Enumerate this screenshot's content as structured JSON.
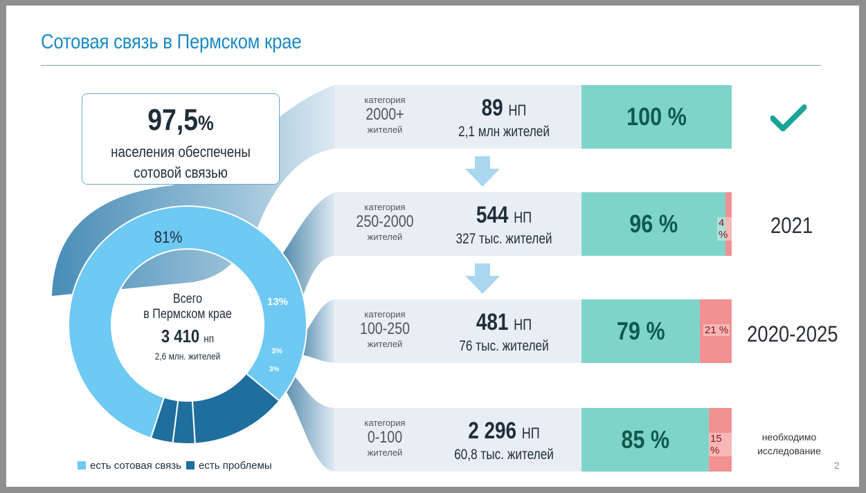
{
  "title": "Сотовая связь в Пермском крае",
  "callout": {
    "value": "97,5",
    "unit": "%",
    "line1": "населения обеспечены",
    "line2": "сотовой связью"
  },
  "donut": {
    "segments": [
      {
        "label": "81%",
        "value": 81,
        "color": "#6ec9f3"
      },
      {
        "label": "13%",
        "value": 13,
        "color": "#1f6e9e"
      },
      {
        "label": "3%",
        "value": 3,
        "color": "#1f6e9e"
      },
      {
        "label": "3%",
        "value": 3,
        "color": "#1f6e9e"
      }
    ],
    "center_line1": "Всего",
    "center_line2": "в Пермском крае",
    "center_count": "3 410",
    "center_unit": "нп",
    "center_pop": "2,6 млн. жителей"
  },
  "rows": [
    {
      "cat_top": "категория",
      "cat_range": "2000+",
      "cat_bottom": "жителей",
      "np": "89",
      "np_unit": "НП",
      "pop": "2,1 млн жителей",
      "green_pct": 100,
      "green_label": "100 %",
      "red_label": "",
      "year": ""
    },
    {
      "cat_top": "категория",
      "cat_range": "250-2000",
      "cat_bottom": "жителей",
      "np": "544",
      "np_unit": "НП",
      "pop": "327 тыс. жителей",
      "green_pct": 96,
      "green_label": "96 %",
      "red_label": "4 %",
      "year": "2021"
    },
    {
      "cat_top": "категория",
      "cat_range": "100-250",
      "cat_bottom": "жителей",
      "np": "481",
      "np_unit": "НП",
      "pop": "76 тыс. жителей",
      "green_pct": 79,
      "green_label": "79 %",
      "red_label": "21 %",
      "year": "2020-2025"
    },
    {
      "cat_top": "категория",
      "cat_range": "0-100",
      "cat_bottom": "жителей",
      "np": "2 296",
      "np_unit": "НП",
      "pop": "60,8 тыс. жителей",
      "green_pct": 85,
      "green_label": "85 %",
      "red_label": "15 %",
      "year": ""
    }
  ],
  "note": {
    "line1": "необходимо",
    "line2": "исследование"
  },
  "legend": [
    {
      "label": "есть сотовая связь",
      "color": "#6ec9f3"
    },
    {
      "label": "есть проблемы",
      "color": "#1f6e9e"
    }
  ],
  "check_icon": "checkmark-icon",
  "page_number": "2",
  "colors": {
    "title": "#1a8bc2",
    "green": "#7fd4c9",
    "red": "#f29191",
    "arrow": "#a9d7ef"
  }
}
